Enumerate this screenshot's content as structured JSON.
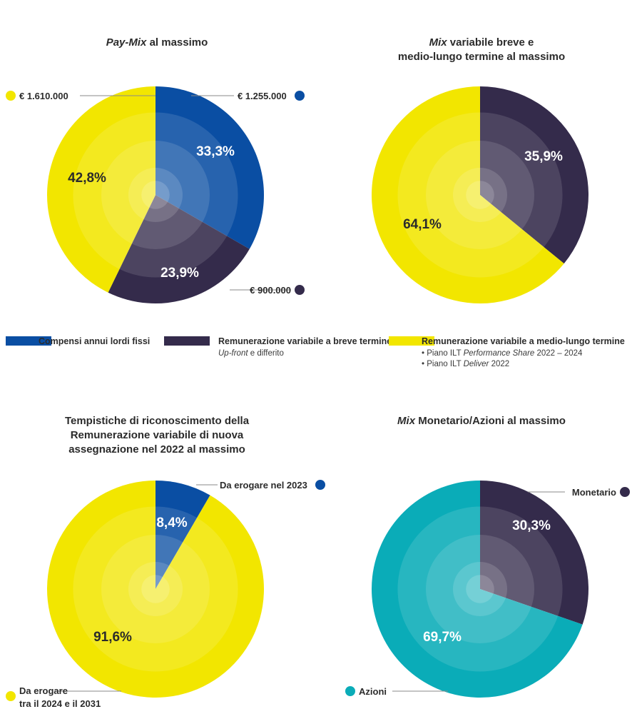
{
  "titles": {
    "paymix": {
      "italic": "Pay-Mix",
      "rest": " al massimo"
    },
    "mixvar": {
      "italic": "Mix",
      "rest1": " variabile breve e",
      "line2": "medio-lungo termine al massimo"
    },
    "timing": {
      "line1": "Tempistiche di riconoscimento della",
      "line2": "Remunerazione variabile di nuova",
      "line3": "assegnazione nel 2022 al massimo"
    },
    "monaz": {
      "italic": "Mix",
      "rest": " Monetario/Azioni al massimo"
    }
  },
  "legend": {
    "fixed": {
      "label": "Compensi annui lordi fissi",
      "color": "#0a4ea3"
    },
    "short": {
      "label": "Remunerazione variabile a breve termine",
      "sub_italic": "Up-front",
      "sub_rest": " e differito",
      "color": "#342b4b"
    },
    "long": {
      "label": "Remunerazione variabile a medio-lungo termine",
      "item1_pre": "• Piano ILT ",
      "item1_italic": "Performance Share",
      "item1_post": " 2022 – 2024",
      "item2_pre": "• Piano ILT ",
      "item2_italic": "Deliver",
      "item2_post": " 2022",
      "color": "#f2e600"
    }
  },
  "chart_data": [
    {
      "type": "pie",
      "title": "Pay-Mix al massimo",
      "slices": [
        {
          "label": "Compensi annui lordi fissi",
          "value": 33.3,
          "display": "33,3%",
          "color": "#0a4ea3",
          "annotation": "€ 1.255.000"
        },
        {
          "label": "Remunerazione variabile a breve termine",
          "value": 23.9,
          "display": "23,9%",
          "color": "#342b4b",
          "annotation": "€ 900.000"
        },
        {
          "label": "Remunerazione variabile a medio-lungo termine",
          "value": 42.8,
          "display": "42,8%",
          "color": "#f2e600",
          "annotation": "€ 1.610.000"
        }
      ]
    },
    {
      "type": "pie",
      "title": "Mix variabile breve e medio-lungo termine al massimo",
      "slices": [
        {
          "label": "Remunerazione variabile a breve termine",
          "value": 35.9,
          "display": "35,9%",
          "color": "#342b4b"
        },
        {
          "label": "Remunerazione variabile a medio-lungo termine",
          "value": 64.1,
          "display": "64,1%",
          "color": "#f2e600"
        }
      ]
    },
    {
      "type": "pie",
      "title": "Tempistiche di riconoscimento della Remunerazione variabile di nuova assegnazione nel 2022 al massimo",
      "slices": [
        {
          "label": "Da erogare nel 2023",
          "value": 8.4,
          "display": "8,4%",
          "color": "#0a4ea3",
          "annotation": "Da erogare nel 2023"
        },
        {
          "label": "Da erogare tra il 2024 e il 2031",
          "value": 91.6,
          "display": "91,6%",
          "color": "#f2e600",
          "annotation": "Da erogare",
          "annotation2": "tra il 2024 e il 2031"
        }
      ]
    },
    {
      "type": "pie",
      "title": "Mix Monetario/Azioni al massimo",
      "slices": [
        {
          "label": "Monetario",
          "value": 30.3,
          "display": "30,3%",
          "color": "#342b4b",
          "annotation": "Monetario"
        },
        {
          "label": "Azioni",
          "value": 69.7,
          "display": "69,7%",
          "color": "#0aacb8",
          "annotation": "Azioni"
        }
      ]
    }
  ]
}
